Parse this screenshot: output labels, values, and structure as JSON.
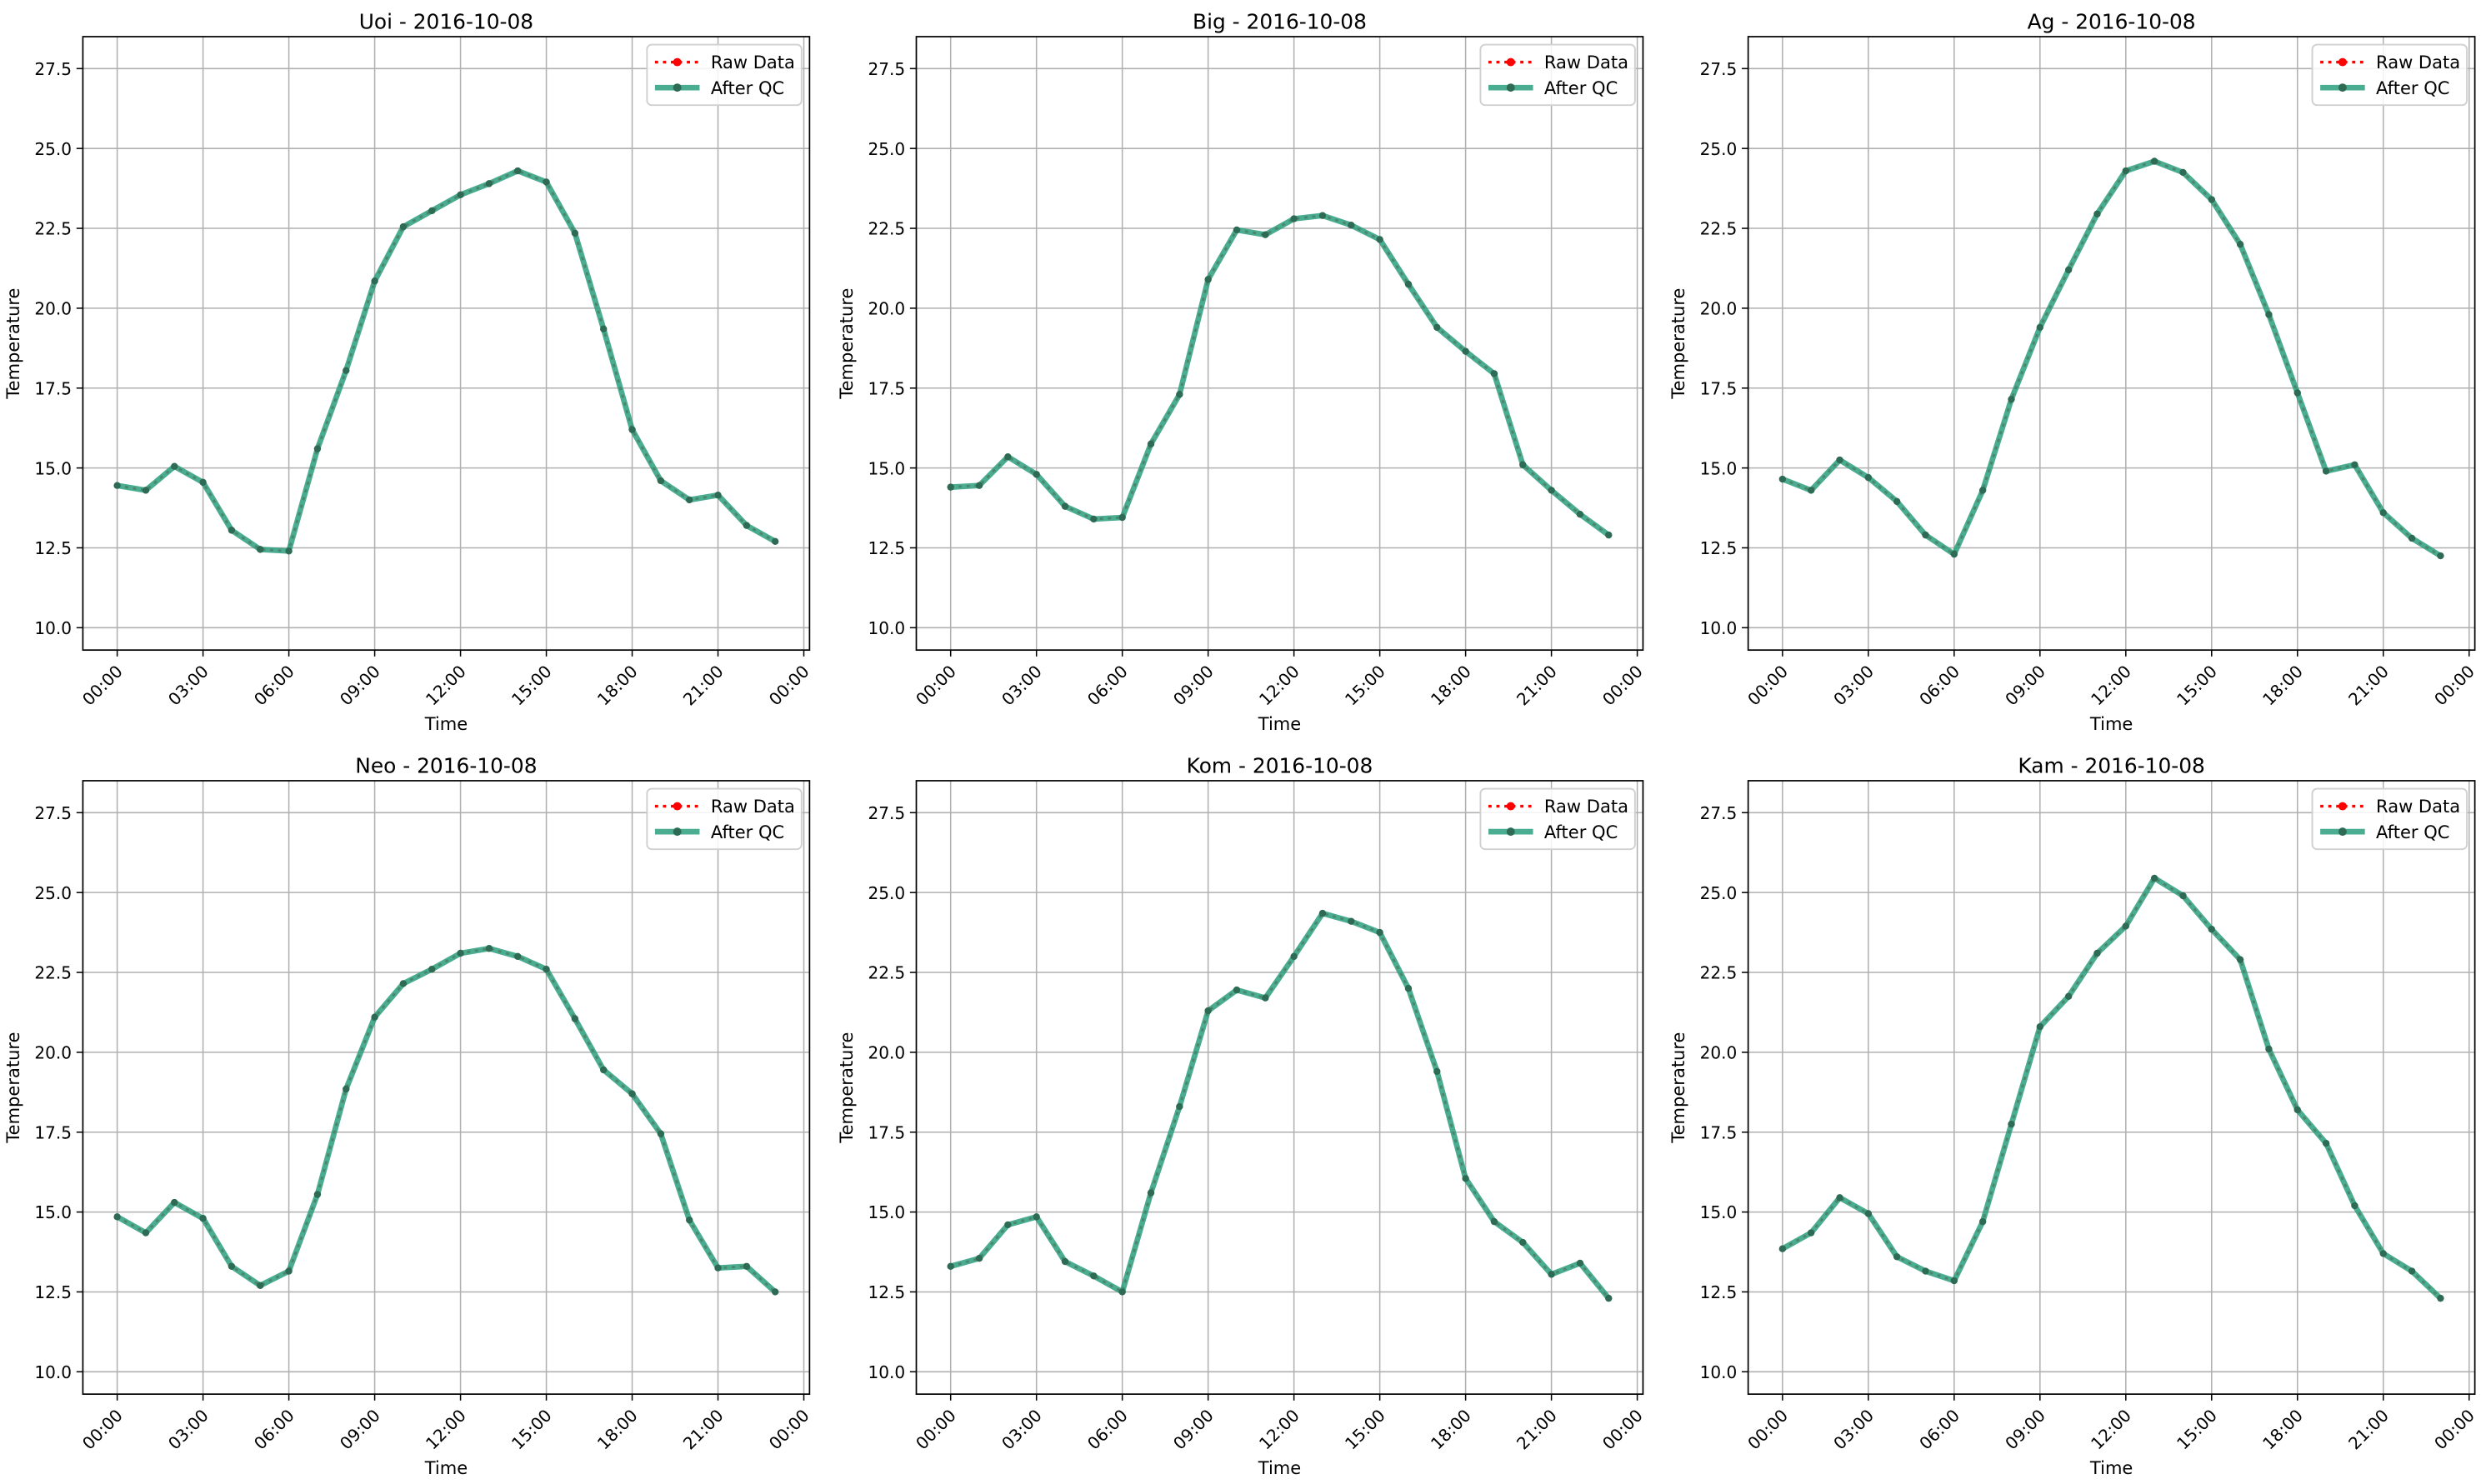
{
  "chart_data": {
    "type": "line",
    "ylabel": "Temperature",
    "xlabel": "Time",
    "xticks": [
      "00:00",
      "03:00",
      "06:00",
      "09:00",
      "12:00",
      "15:00",
      "18:00",
      "21:00",
      "00:00"
    ],
    "yticks": [
      "10.0",
      "12.5",
      "15.0",
      "17.5",
      "20.0",
      "22.5",
      "25.0",
      "27.5"
    ],
    "ylim": [
      9.3,
      28.5
    ],
    "xlim_hours": [
      -1.2,
      24.2
    ],
    "grid": true,
    "legend_placement": "upper right",
    "legend": [
      "Raw Data",
      "After QC"
    ],
    "colors": {
      "raw": "#ff0000",
      "qc": "#2a9d7c",
      "qc_marker": "#2e6b55"
    },
    "hours": [
      0,
      1,
      2,
      3,
      4,
      5,
      6,
      7,
      8,
      9,
      10,
      11,
      12,
      13,
      14,
      15,
      16,
      17,
      18,
      19,
      20,
      21,
      22,
      23
    ],
    "panels": [
      {
        "title": "Uoi - 2016-10-08",
        "values": [
          14.45,
          14.3,
          15.05,
          14.55,
          13.05,
          12.45,
          12.4,
          15.6,
          18.05,
          20.85,
          22.55,
          23.05,
          23.55,
          23.9,
          24.3,
          23.95,
          22.35,
          19.35,
          16.2,
          14.6,
          14.0,
          14.15,
          13.2,
          12.7
        ]
      },
      {
        "title": "Big - 2016-10-08",
        "values": [
          14.4,
          14.45,
          15.35,
          14.8,
          13.8,
          13.4,
          13.45,
          15.75,
          17.3,
          20.9,
          22.45,
          22.3,
          22.8,
          22.9,
          22.6,
          22.15,
          20.75,
          19.4,
          18.65,
          17.95,
          15.1,
          14.3,
          13.55,
          12.9
        ]
      },
      {
        "title": "Ag - 2016-10-08",
        "values": [
          14.65,
          14.3,
          15.25,
          14.7,
          13.95,
          12.9,
          12.3,
          14.3,
          17.15,
          19.4,
          21.2,
          22.95,
          24.3,
          24.6,
          24.25,
          23.4,
          22.0,
          19.8,
          17.35,
          14.9,
          15.1,
          13.6,
          12.8,
          12.25
        ]
      },
      {
        "title": "Neo - 2016-10-08",
        "values": [
          14.85,
          14.35,
          15.3,
          14.8,
          13.3,
          12.7,
          13.15,
          15.55,
          18.85,
          21.1,
          22.15,
          22.6,
          23.1,
          23.25,
          23.0,
          22.6,
          21.05,
          19.45,
          18.7,
          17.45,
          14.75,
          13.25,
          13.3,
          12.5
        ]
      },
      {
        "title": "Kom - 2016-10-08",
        "values": [
          13.3,
          13.55,
          14.6,
          14.85,
          13.45,
          13.0,
          12.5,
          15.6,
          18.3,
          21.3,
          21.95,
          21.7,
          23.0,
          24.35,
          24.1,
          23.75,
          22.0,
          19.4,
          16.05,
          14.7,
          14.05,
          13.05,
          13.4,
          12.3
        ]
      },
      {
        "title": "Kam - 2016-10-08",
        "values": [
          13.85,
          14.35,
          15.45,
          14.95,
          13.6,
          13.15,
          12.85,
          14.7,
          17.75,
          20.8,
          21.75,
          23.1,
          23.95,
          25.45,
          24.9,
          23.85,
          22.9,
          20.1,
          18.2,
          17.15,
          15.2,
          13.7,
          13.15,
          12.3
        ]
      }
    ]
  }
}
